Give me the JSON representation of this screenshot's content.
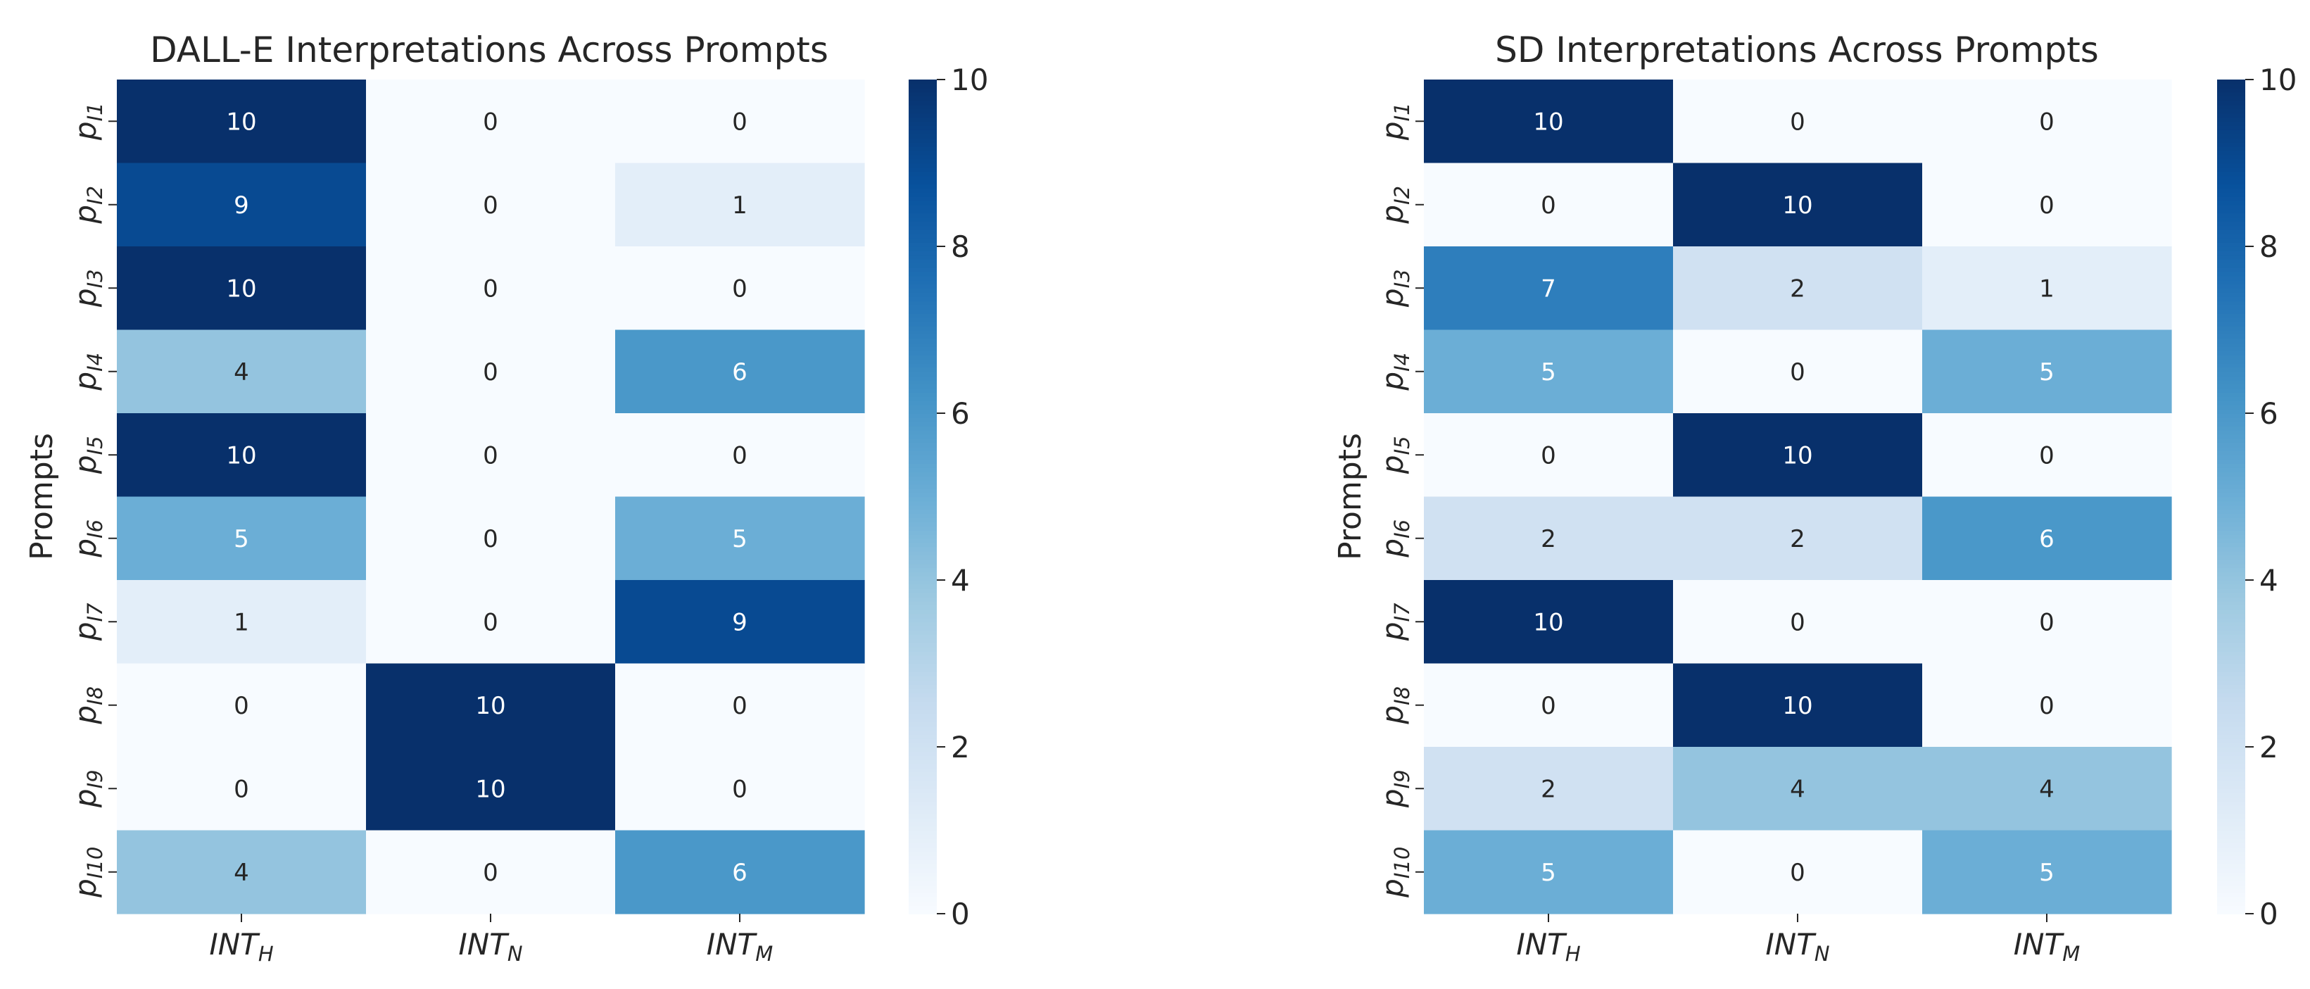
{
  "chart_data": [
    {
      "type": "heatmap",
      "title": "DALL-E Interpretations Across Prompts",
      "ylabel": "Prompts",
      "xlabel": "",
      "x_categories": [
        {
          "base": "INT",
          "sub": "H"
        },
        {
          "base": "INT",
          "sub": "N"
        },
        {
          "base": "INT",
          "sub": "M"
        }
      ],
      "y_categories": [
        {
          "base": "p",
          "sub": "I1"
        },
        {
          "base": "p",
          "sub": "I2"
        },
        {
          "base": "p",
          "sub": "I3"
        },
        {
          "base": "p",
          "sub": "I4"
        },
        {
          "base": "p",
          "sub": "I5"
        },
        {
          "base": "p",
          "sub": "I6"
        },
        {
          "base": "p",
          "sub": "I7"
        },
        {
          "base": "p",
          "sub": "I8"
        },
        {
          "base": "p",
          "sub": "I9"
        },
        {
          "base": "p",
          "sub": "I10"
        }
      ],
      "values": [
        [
          10,
          0,
          0
        ],
        [
          9,
          0,
          1
        ],
        [
          10,
          0,
          0
        ],
        [
          4,
          0,
          6
        ],
        [
          10,
          0,
          0
        ],
        [
          5,
          0,
          5
        ],
        [
          1,
          0,
          9
        ],
        [
          0,
          10,
          0
        ],
        [
          0,
          10,
          0
        ],
        [
          4,
          0,
          6
        ]
      ],
      "colorbar": {
        "min": 0,
        "max": 10,
        "ticks": [
          0,
          2,
          4,
          6,
          8,
          10
        ],
        "colormap": "Blues"
      }
    },
    {
      "type": "heatmap",
      "title": "SD Interpretations Across Prompts",
      "ylabel": "Prompts",
      "xlabel": "",
      "x_categories": [
        {
          "base": "INT",
          "sub": "H"
        },
        {
          "base": "INT",
          "sub": "N"
        },
        {
          "base": "INT",
          "sub": "M"
        }
      ],
      "y_categories": [
        {
          "base": "p",
          "sub": "I1"
        },
        {
          "base": "p",
          "sub": "I2"
        },
        {
          "base": "p",
          "sub": "I3"
        },
        {
          "base": "p",
          "sub": "I4"
        },
        {
          "base": "p",
          "sub": "I5"
        },
        {
          "base": "p",
          "sub": "I6"
        },
        {
          "base": "p",
          "sub": "I7"
        },
        {
          "base": "p",
          "sub": "I8"
        },
        {
          "base": "p",
          "sub": "I9"
        },
        {
          "base": "p",
          "sub": "I10"
        }
      ],
      "values": [
        [
          10,
          0,
          0
        ],
        [
          0,
          10,
          0
        ],
        [
          7,
          2,
          1
        ],
        [
          5,
          0,
          5
        ],
        [
          0,
          10,
          0
        ],
        [
          2,
          2,
          6
        ],
        [
          10,
          0,
          0
        ],
        [
          0,
          10,
          0
        ],
        [
          2,
          4,
          4
        ],
        [
          5,
          0,
          5
        ]
      ],
      "colorbar": {
        "min": 0,
        "max": 10,
        "ticks": [
          0,
          2,
          4,
          6,
          8,
          10
        ],
        "colormap": "Blues"
      }
    }
  ],
  "colors": {
    "text_dark": "#262626",
    "axis": "#262626",
    "annot_light": "#ffffff",
    "annot_dark": "#262626"
  }
}
